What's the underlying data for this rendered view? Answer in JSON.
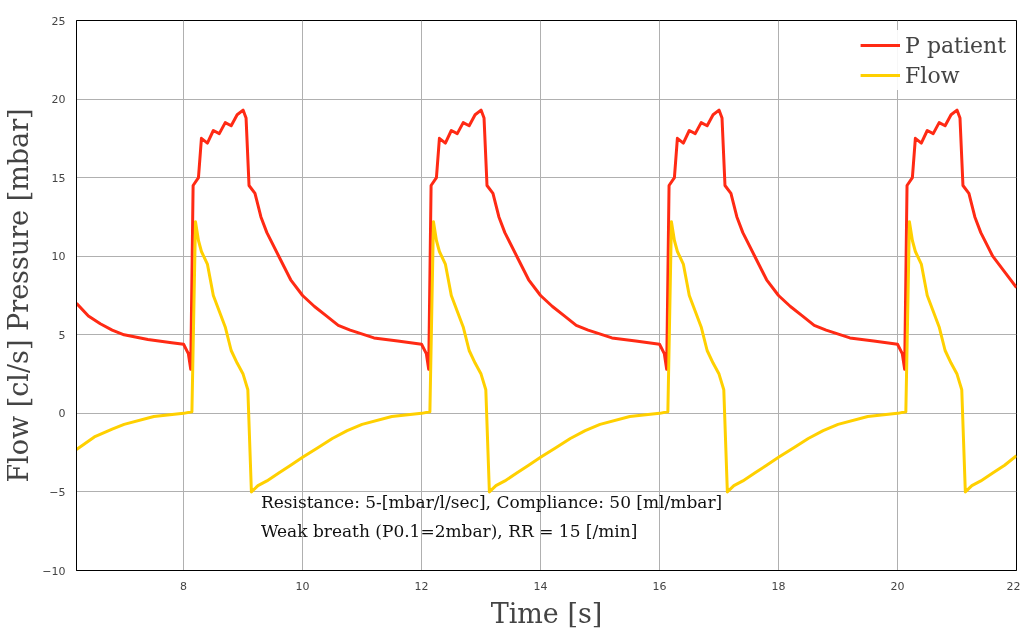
{
  "chart_data": {
    "type": "line",
    "xlabel": "Time [s]",
    "ylabel": "Flow [cl/s] Pressure [mbar]",
    "xlim": [
      6.2,
      22
    ],
    "ylim": [
      -10,
      25
    ],
    "xticks": [
      8,
      10,
      12,
      14,
      16,
      18,
      20,
      22
    ],
    "yticks": [
      -10,
      -5,
      0,
      5,
      10,
      15,
      20,
      25
    ],
    "grid": true,
    "legend": "top right",
    "line_style": "solid",
    "marker": "none",
    "annotations": [
      "Resistance:  5-[mbar/l/sec], Compliance: 50 [ml/mbar]",
      "Weak breath (P0.1=2mbar), RR = 15 [/min]"
    ],
    "series": [
      {
        "name": "P patient",
        "color": "#ff2a14",
        "x": [
          6.2,
          6.4,
          6.6,
          6.8,
          7.0,
          7.4,
          7.8,
          8.0,
          8.08,
          8.12,
          8.16,
          8.25,
          8.3,
          8.4,
          8.5,
          8.6,
          8.7,
          8.8,
          8.9,
          9.0,
          9.05,
          9.1,
          9.2,
          9.3,
          9.4,
          9.6,
          9.8,
          10.0,
          10.2,
          10.4,
          10.6,
          10.8,
          11.2,
          11.6,
          12.0,
          12.08,
          12.12,
          12.16,
          12.25,
          12.3,
          12.4,
          12.5,
          12.6,
          12.7,
          12.8,
          12.9,
          13.0,
          13.05,
          13.1,
          13.2,
          13.3,
          13.4,
          13.6,
          13.8,
          14.0,
          14.2,
          14.4,
          14.6,
          14.8,
          15.2,
          15.6,
          16.0,
          16.08,
          16.12,
          16.16,
          16.25,
          16.3,
          16.4,
          16.5,
          16.6,
          16.7,
          16.8,
          16.9,
          17.0,
          17.05,
          17.1,
          17.2,
          17.3,
          17.4,
          17.6,
          17.8,
          18.0,
          18.2,
          18.4,
          18.6,
          18.8,
          19.2,
          19.6,
          20.0,
          20.08,
          20.12,
          20.16,
          20.25,
          20.3,
          20.4,
          20.5,
          20.6,
          20.7,
          20.8,
          20.9,
          21.0,
          21.05,
          21.1,
          21.2,
          21.3,
          21.4,
          21.6,
          21.8,
          22.0
        ],
        "values": [
          7.0,
          6.2,
          5.7,
          5.3,
          5.0,
          4.7,
          4.5,
          4.4,
          3.8,
          2.8,
          14.5,
          15.0,
          17.5,
          17.2,
          18.0,
          17.8,
          18.5,
          18.3,
          19.0,
          19.3,
          18.8,
          14.5,
          14.0,
          12.5,
          11.5,
          10.0,
          8.5,
          7.5,
          6.8,
          6.2,
          5.6,
          5.3,
          4.8,
          4.6,
          4.4,
          3.8,
          2.8,
          14.5,
          15.0,
          17.5,
          17.2,
          18.0,
          17.8,
          18.5,
          18.3,
          19.0,
          19.3,
          18.8,
          14.5,
          14.0,
          12.5,
          11.5,
          10.0,
          8.5,
          7.5,
          6.8,
          6.2,
          5.6,
          5.3,
          4.8,
          4.6,
          4.4,
          3.8,
          2.8,
          14.5,
          15.0,
          17.5,
          17.2,
          18.0,
          17.8,
          18.5,
          18.3,
          19.0,
          19.3,
          18.8,
          14.5,
          14.0,
          12.5,
          11.5,
          10.0,
          8.5,
          7.5,
          6.8,
          6.2,
          5.6,
          5.3,
          4.8,
          4.6,
          4.4,
          3.8,
          2.8,
          14.5,
          15.0,
          17.5,
          17.2,
          18.0,
          17.8,
          18.5,
          18.3,
          19.0,
          19.3,
          18.8,
          14.5,
          14.0,
          12.5,
          11.5,
          10.0,
          9.0,
          8.0
        ]
      },
      {
        "name": "Flow",
        "color": "#ffd000",
        "x": [
          6.2,
          6.5,
          6.8,
          7.0,
          7.5,
          8.0,
          8.14,
          8.2,
          8.25,
          8.3,
          8.4,
          8.5,
          8.6,
          8.7,
          8.8,
          8.9,
          9.0,
          9.08,
          9.14,
          9.25,
          9.4,
          9.6,
          9.8,
          10.0,
          10.25,
          10.5,
          10.75,
          11.0,
          11.5,
          12.0,
          12.14,
          12.2,
          12.25,
          12.3,
          12.4,
          12.5,
          12.6,
          12.7,
          12.8,
          12.9,
          13.0,
          13.08,
          13.14,
          13.25,
          13.4,
          13.6,
          13.8,
          14.0,
          14.25,
          14.5,
          14.75,
          15.0,
          15.5,
          16.0,
          16.14,
          16.2,
          16.25,
          16.3,
          16.4,
          16.5,
          16.6,
          16.7,
          16.8,
          16.9,
          17.0,
          17.08,
          17.14,
          17.25,
          17.4,
          17.6,
          17.8,
          18.0,
          18.25,
          18.5,
          18.75,
          19.0,
          19.5,
          20.0,
          20.14,
          20.2,
          20.25,
          20.3,
          20.4,
          20.5,
          20.6,
          20.7,
          20.8,
          20.9,
          21.0,
          21.08,
          21.14,
          21.25,
          21.4,
          21.6,
          21.8,
          22.0
        ],
        "values": [
          -2.3,
          -1.5,
          -1.0,
          -0.7,
          -0.2,
          0.0,
          0.1,
          12.2,
          11.0,
          10.3,
          9.5,
          7.5,
          6.5,
          5.5,
          4.0,
          3.2,
          2.5,
          1.5,
          -5.0,
          -4.6,
          -4.3,
          -3.8,
          -3.3,
          -2.8,
          -2.2,
          -1.6,
          -1.1,
          -0.7,
          -0.2,
          0.0,
          0.1,
          12.2,
          11.0,
          10.3,
          9.5,
          7.5,
          6.5,
          5.5,
          4.0,
          3.2,
          2.5,
          1.5,
          -5.0,
          -4.6,
          -4.3,
          -3.8,
          -3.3,
          -2.8,
          -2.2,
          -1.6,
          -1.1,
          -0.7,
          -0.2,
          0.0,
          0.1,
          12.2,
          11.0,
          10.3,
          9.5,
          7.5,
          6.5,
          5.5,
          4.0,
          3.2,
          2.5,
          1.5,
          -5.0,
          -4.6,
          -4.3,
          -3.8,
          -3.3,
          -2.8,
          -2.2,
          -1.6,
          -1.1,
          -0.7,
          -0.2,
          0.0,
          0.1,
          12.2,
          11.0,
          10.3,
          9.5,
          7.5,
          6.5,
          5.5,
          4.0,
          3.2,
          2.5,
          1.5,
          -5.0,
          -4.6,
          -4.3,
          -3.8,
          -3.3,
          -2.7
        ]
      }
    ]
  }
}
